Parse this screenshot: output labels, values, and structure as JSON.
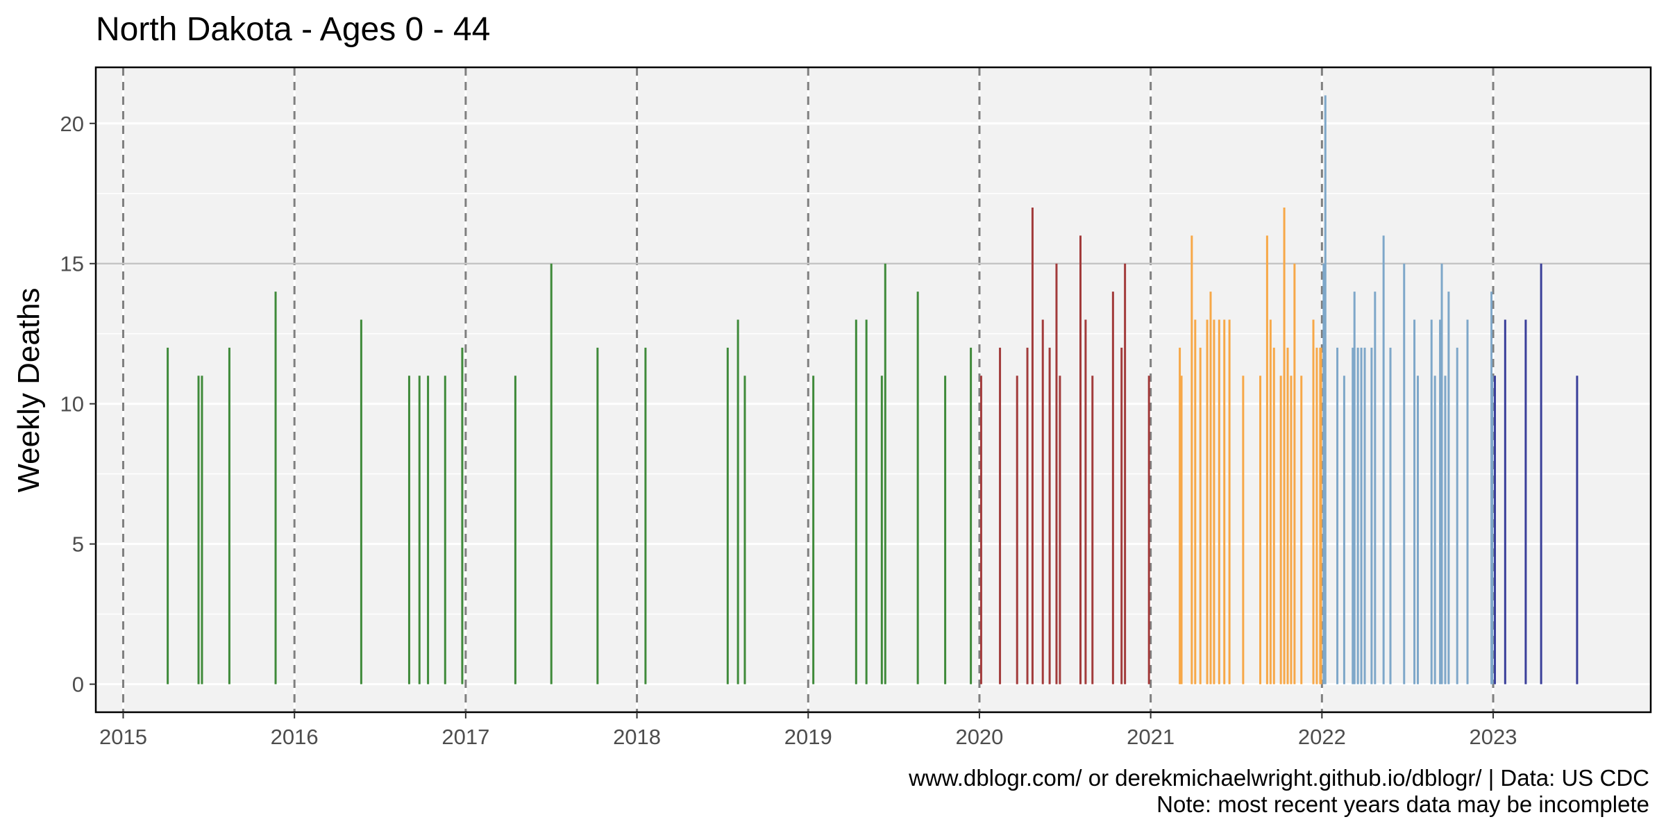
{
  "chart_data": {
    "type": "bar",
    "title": "North Dakota  - Ages 0 - 44",
    "ylabel": "Weekly Deaths",
    "xlabel": "",
    "xlim": [
      2014.84,
      2023.92
    ],
    "ylim": [
      -1,
      22
    ],
    "x_ticks": [
      2015,
      2016,
      2017,
      2018,
      2019,
      2020,
      2021,
      2022,
      2023
    ],
    "y_ticks": [
      0,
      5,
      10,
      15,
      20
    ],
    "y_grid_minor": [
      2.5,
      7.5,
      12.5,
      17.5
    ],
    "year_boundaries": [
      2015,
      2016,
      2017,
      2018,
      2019,
      2020,
      2021,
      2022,
      2023
    ],
    "reference_line": 15,
    "grid": true,
    "legend": "none",
    "caption_lines": [
      "www.dblogr.com/ or derekmichaelwright.github.io/dblogr/ | Data: US CDC",
      "Note: most recent years data may be incomplete"
    ],
    "colors": {
      "panel_background": "#f2f2f2",
      "gridline": "#ffffff",
      "year_boundary": "#7f7f7f",
      "reference_line": "#c8c8c8"
    },
    "series": [
      {
        "color": "#3f8a3a",
        "points": [
          [
            2015.26,
            12
          ],
          [
            2015.44,
            11
          ],
          [
            2015.46,
            11
          ],
          [
            2015.62,
            12
          ],
          [
            2015.89,
            14
          ],
          [
            2016.39,
            13
          ],
          [
            2016.67,
            11
          ],
          [
            2016.73,
            11
          ],
          [
            2016.78,
            11
          ],
          [
            2016.88,
            11
          ],
          [
            2016.98,
            12
          ],
          [
            2017.29,
            11
          ],
          [
            2017.5,
            15
          ],
          [
            2017.77,
            12
          ],
          [
            2018.05,
            12
          ],
          [
            2018.53,
            12
          ],
          [
            2018.59,
            13
          ],
          [
            2018.63,
            11
          ],
          [
            2019.03,
            11
          ],
          [
            2019.28,
            13
          ],
          [
            2019.34,
            13
          ],
          [
            2019.43,
            11
          ],
          [
            2019.45,
            15
          ],
          [
            2019.64,
            14
          ],
          [
            2019.8,
            11
          ],
          [
            2019.95,
            12
          ]
        ]
      },
      {
        "color": "#a23b3b",
        "points": [
          [
            2020.01,
            11
          ],
          [
            2020.12,
            12
          ],
          [
            2020.22,
            11
          ],
          [
            2020.28,
            12
          ],
          [
            2020.31,
            17
          ],
          [
            2020.37,
            13
          ],
          [
            2020.41,
            12
          ],
          [
            2020.45,
            15
          ],
          [
            2020.47,
            11
          ],
          [
            2020.59,
            16
          ],
          [
            2020.62,
            13
          ],
          [
            2020.66,
            11
          ],
          [
            2020.78,
            14
          ],
          [
            2020.83,
            12
          ],
          [
            2020.85,
            15
          ],
          [
            2020.99,
            11
          ]
        ]
      },
      {
        "color": "#f7a848",
        "points": [
          [
            2021.17,
            12
          ],
          [
            2021.18,
            11
          ],
          [
            2021.24,
            16
          ],
          [
            2021.26,
            13
          ],
          [
            2021.29,
            12
          ],
          [
            2021.33,
            13
          ],
          [
            2021.35,
            14
          ],
          [
            2021.37,
            13
          ],
          [
            2021.4,
            13
          ],
          [
            2021.43,
            13
          ],
          [
            2021.46,
            13
          ],
          [
            2021.54,
            11
          ],
          [
            2021.64,
            11
          ],
          [
            2021.68,
            16
          ],
          [
            2021.7,
            13
          ],
          [
            2021.72,
            12
          ],
          [
            2021.76,
            11
          ],
          [
            2021.78,
            17
          ],
          [
            2021.8,
            12
          ],
          [
            2021.82,
            11
          ],
          [
            2021.84,
            15
          ],
          [
            2021.88,
            11
          ],
          [
            2021.95,
            13
          ],
          [
            2021.97,
            12
          ],
          [
            2021.99,
            12
          ],
          [
            2021.995,
            12
          ]
        ]
      },
      {
        "color": "#7ea7c9",
        "points": [
          [
            2022.01,
            15
          ],
          [
            2022.02,
            21
          ],
          [
            2022.09,
            12
          ],
          [
            2022.13,
            11
          ],
          [
            2022.18,
            12
          ],
          [
            2022.19,
            14
          ],
          [
            2022.21,
            12
          ],
          [
            2022.23,
            12
          ],
          [
            2022.25,
            12
          ],
          [
            2022.29,
            12
          ],
          [
            2022.31,
            14
          ],
          [
            2022.36,
            16
          ],
          [
            2022.4,
            12
          ],
          [
            2022.48,
            15
          ],
          [
            2022.54,
            13
          ],
          [
            2022.56,
            11
          ],
          [
            2022.64,
            13
          ],
          [
            2022.66,
            11
          ],
          [
            2022.69,
            13
          ],
          [
            2022.7,
            15
          ],
          [
            2022.72,
            11
          ],
          [
            2022.74,
            14
          ],
          [
            2022.79,
            12
          ],
          [
            2022.85,
            13
          ],
          [
            2022.99,
            14
          ],
          [
            2022.995,
            11
          ]
        ]
      },
      {
        "color": "#3a3f9a",
        "points": [
          [
            2023.01,
            11
          ],
          [
            2023.07,
            13
          ],
          [
            2023.19,
            13
          ],
          [
            2023.28,
            15
          ],
          [
            2023.49,
            11
          ]
        ]
      }
    ]
  }
}
